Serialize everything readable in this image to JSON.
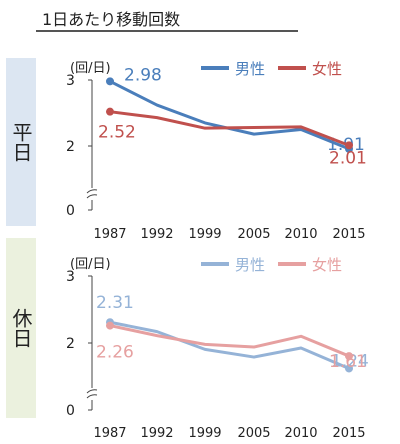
{
  "title": "1日あたり移動回数",
  "panels": [
    {
      "label": "平日",
      "bg": "#dce6f2"
    },
    {
      "label": "休日",
      "bg": "#ebf1de"
    }
  ],
  "chart_data": [
    {
      "type": "line",
      "ylabel": "(回/日)",
      "ylim": [
        0,
        3
      ],
      "yticks": [
        0,
        2,
        3
      ],
      "axis_break": true,
      "categories": [
        "1987",
        "1992",
        "1999",
        "2005",
        "2010",
        "2015"
      ],
      "legend_position": "top-right",
      "series": [
        {
          "name": "男性",
          "color": "#4a7ebb",
          "values": [
            2.98,
            2.62,
            2.35,
            2.18,
            2.25,
            1.91
          ],
          "labels": {
            "first": "2.98",
            "last": "1.91"
          }
        },
        {
          "name": "女性",
          "color": "#c0504d",
          "values": [
            2.52,
            2.43,
            2.27,
            2.28,
            2.29,
            2.01
          ],
          "labels": {
            "first": "2.52",
            "last": "2.01"
          }
        }
      ]
    },
    {
      "type": "line",
      "ylabel": "(回/日)",
      "ylim": [
        0,
        3
      ],
      "yticks": [
        0,
        2,
        3
      ],
      "axis_break": true,
      "categories": [
        "1987",
        "1992",
        "1999",
        "2005",
        "2010",
        "2015"
      ],
      "legend_position": "top-right",
      "series": [
        {
          "name": "男性",
          "color": "#95b3d7",
          "values": [
            2.31,
            2.17,
            1.81,
            1.58,
            1.85,
            1.24
          ],
          "labels": {
            "first": "2.31",
            "last": "1.24"
          }
        },
        {
          "name": "女性",
          "color": "#e6a0a0",
          "values": [
            2.26,
            2.11,
            1.96,
            1.88,
            2.1,
            1.61
          ],
          "labels": {
            "first": "2.26",
            "last": "1.61"
          }
        }
      ]
    }
  ]
}
